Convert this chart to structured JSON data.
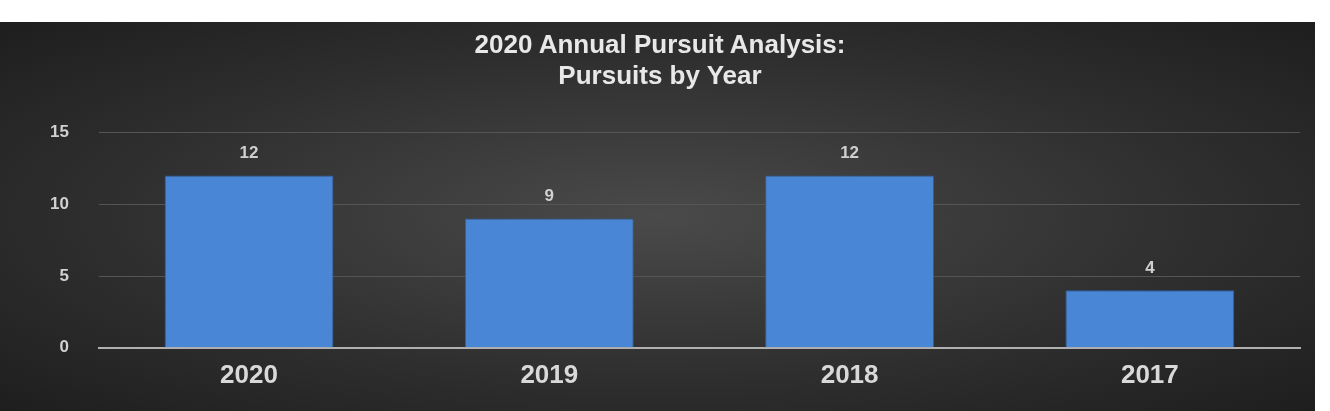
{
  "chart_data": {
    "type": "bar",
    "title": "2020 Annual Pursuit Analysis:\nPursuits by Year",
    "categories": [
      "2020",
      "2019",
      "2018",
      "2017"
    ],
    "values": [
      12,
      9,
      12,
      4
    ],
    "color": "#4a86d6",
    "ylim": [
      0,
      15
    ],
    "yticks": [
      0,
      5,
      10,
      15
    ],
    "grid": "y",
    "data_labels": true
  }
}
